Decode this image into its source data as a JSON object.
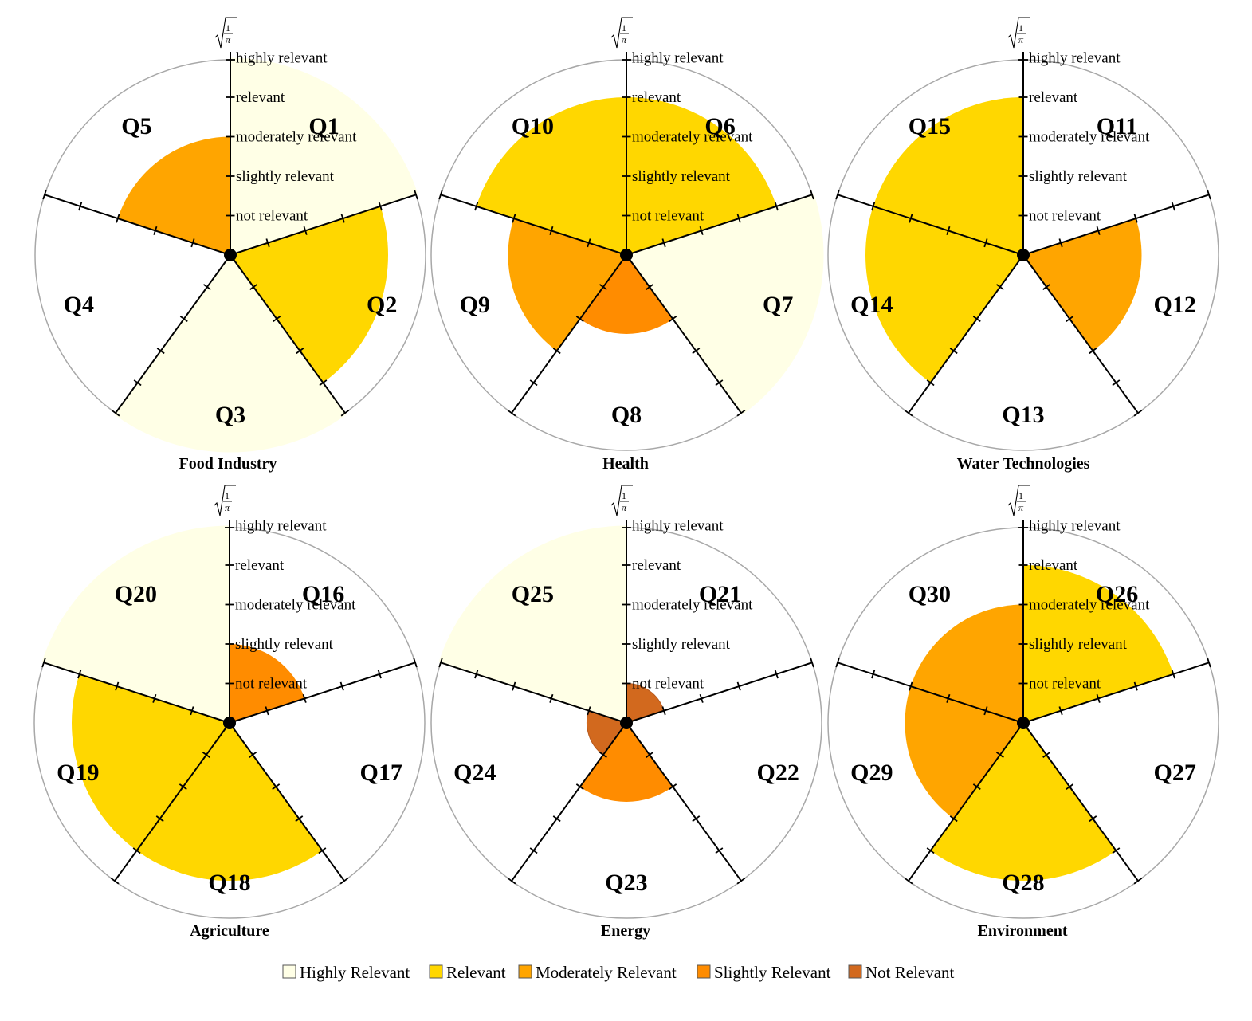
{
  "chart_data": {
    "type": "polar-area",
    "scale_label": "√(1/π)",
    "levels": [
      "not relevant",
      "slightly relevant",
      "moderately relevant",
      "relevant",
      "highly relevant"
    ],
    "category_colors": {
      "Highly Relevant": "#FFFFE6",
      "Relevant": "#FFD700",
      "Moderately Relevant": "#FFA500",
      "Slightly Relevant": "#FF8C00",
      "Not Relevant": "#D2691E"
    },
    "legend": [
      {
        "label": "Highly Relevant",
        "color": "#FFFFE6"
      },
      {
        "label": "Relevant",
        "color": "#FFD700"
      },
      {
        "label": "Moderately Relevant",
        "color": "#FFA500"
      },
      {
        "label": "Slightly Relevant",
        "color": "#FF8C00"
      },
      {
        "label": "Not Relevant",
        "color": "#D2691E"
      }
    ],
    "panels": [
      {
        "title": "Food Industry",
        "questions": [
          {
            "label": "Q1",
            "level": 5,
            "category": "Highly Relevant"
          },
          {
            "label": "Q2",
            "level": 4,
            "category": "Relevant"
          },
          {
            "label": "Q3",
            "level": 5,
            "category": "Highly Relevant"
          },
          {
            "label": "Q4",
            "level": 0,
            "category": ""
          },
          {
            "label": "Q5",
            "level": 3,
            "category": "Moderately Relevant"
          }
        ]
      },
      {
        "title": "Health",
        "questions": [
          {
            "label": "Q6",
            "level": 4,
            "category": "Relevant"
          },
          {
            "label": "Q7",
            "level": 5,
            "category": "Highly Relevant"
          },
          {
            "label": "Q8",
            "level": 2,
            "category": "Slightly Relevant"
          },
          {
            "label": "Q9",
            "level": 3,
            "category": "Moderately Relevant"
          },
          {
            "label": "Q10",
            "level": 4,
            "category": "Relevant"
          }
        ]
      },
      {
        "title": "Water Technologies",
        "questions": [
          {
            "label": "Q11",
            "level": 0,
            "category": ""
          },
          {
            "label": "Q12",
            "level": 3,
            "category": "Moderately Relevant"
          },
          {
            "label": "Q13",
            "level": 0,
            "category": ""
          },
          {
            "label": "Q14",
            "level": 4,
            "category": "Relevant"
          },
          {
            "label": "Q15",
            "level": 4,
            "category": "Relevant"
          }
        ]
      },
      {
        "title": "Agriculture",
        "questions": [
          {
            "label": "Q16",
            "level": 2,
            "category": "Slightly Relevant"
          },
          {
            "label": "Q17",
            "level": 0,
            "category": ""
          },
          {
            "label": "Q18",
            "level": 4,
            "category": "Relevant"
          },
          {
            "label": "Q19",
            "level": 4,
            "category": "Relevant"
          },
          {
            "label": "Q20",
            "level": 5,
            "category": "Highly Relevant"
          }
        ]
      },
      {
        "title": "Energy",
        "questions": [
          {
            "label": "Q21",
            "level": 1,
            "category": "Not Relevant"
          },
          {
            "label": "Q22",
            "level": 0,
            "category": ""
          },
          {
            "label": "Q23",
            "level": 2,
            "category": "Slightly Relevant"
          },
          {
            "label": "Q24",
            "level": 1,
            "category": "Not Relevant"
          },
          {
            "label": "Q25",
            "level": 5,
            "category": "Highly Relevant"
          }
        ]
      },
      {
        "title": "Environment",
        "questions": [
          {
            "label": "Q26",
            "level": 4,
            "category": "Relevant"
          },
          {
            "label": "Q27",
            "level": 0,
            "category": ""
          },
          {
            "label": "Q28",
            "level": 4,
            "category": "Relevant"
          },
          {
            "label": "Q29",
            "level": 3,
            "category": "Moderately Relevant"
          },
          {
            "label": "Q30",
            "level": 3,
            "category": "Moderately Relevant"
          }
        ]
      }
    ]
  }
}
